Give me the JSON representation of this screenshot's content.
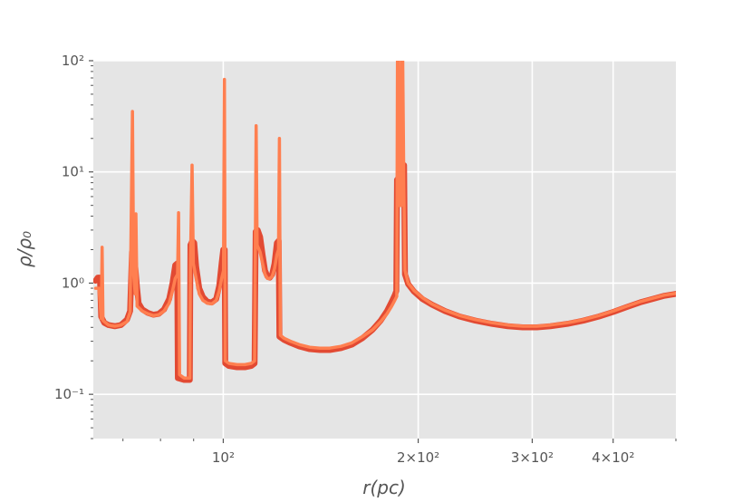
{
  "chart_data": {
    "type": "line",
    "title": "",
    "xlabel": "r(pc)",
    "ylabel": "ρ/ρ₀",
    "xscale": "log",
    "yscale": "log",
    "xlim": [
      63,
      500
    ],
    "ylim": [
      0.04,
      100
    ],
    "grid": true,
    "background": "#e5e5e5",
    "x_ticks": [
      {
        "value": 100,
        "label": "10²"
      },
      {
        "value": 200,
        "label": "2×10²"
      },
      {
        "value": 300,
        "label": "3×10²"
      },
      {
        "value": 400,
        "label": "4×10²"
      }
    ],
    "y_ticks": [
      {
        "value": 0.1,
        "label": "10⁻¹"
      },
      {
        "value": 1,
        "label": "10⁰"
      },
      {
        "value": 10,
        "label": "10¹"
      },
      {
        "value": 100,
        "label": "10²"
      }
    ],
    "series": [
      {
        "color": "#e24a33",
        "points": [
          [
            63.5,
            1.05
          ],
          [
            64.0,
            1.12
          ],
          [
            64.5,
            1.12
          ],
          [
            64.8,
            0.5
          ],
          [
            65.5,
            0.44
          ],
          [
            66.5,
            0.42
          ],
          [
            68.0,
            0.41
          ],
          [
            69.5,
            0.42
          ],
          [
            71.0,
            0.47
          ],
          [
            71.8,
            0.56
          ],
          [
            72.3,
            1.9
          ],
          [
            73.0,
            1.6
          ],
          [
            73.6,
            0.9
          ],
          [
            74.0,
            0.66
          ],
          [
            75.0,
            0.58
          ],
          [
            76.5,
            0.54
          ],
          [
            78.0,
            0.52
          ],
          [
            79.5,
            0.53
          ],
          [
            81.0,
            0.58
          ],
          [
            82.5,
            0.72
          ],
          [
            83.5,
            1.0
          ],
          [
            84.3,
            1.45
          ],
          [
            84.9,
            1.5
          ],
          [
            85.1,
            0.14
          ],
          [
            87.0,
            0.135
          ],
          [
            88.8,
            0.135
          ],
          [
            89.0,
            2.2
          ],
          [
            89.6,
            2.4
          ],
          [
            90.2,
            2.3
          ],
          [
            90.8,
            1.4
          ],
          [
            91.8,
            0.9
          ],
          [
            93.0,
            0.75
          ],
          [
            94.5,
            0.68
          ],
          [
            96.0,
            0.67
          ],
          [
            97.5,
            0.72
          ],
          [
            98.6,
            0.95
          ],
          [
            99.4,
            1.5
          ],
          [
            100.0,
            2.0
          ],
          [
            100.5,
            2.0
          ],
          [
            100.7,
            0.19
          ],
          [
            102.0,
            0.18
          ],
          [
            105.0,
            0.175
          ],
          [
            108.0,
            0.175
          ],
          [
            110.5,
            0.18
          ],
          [
            111.8,
            0.19
          ],
          [
            112.2,
            2.9
          ],
          [
            113.0,
            3.0
          ],
          [
            114.0,
            2.6
          ],
          [
            115.0,
            1.8
          ],
          [
            116.0,
            1.3
          ],
          [
            117.0,
            1.15
          ],
          [
            118.0,
            1.12
          ],
          [
            119.0,
            1.2
          ],
          [
            120.0,
            1.5
          ],
          [
            121.0,
            2.3
          ],
          [
            121.8,
            2.4
          ],
          [
            122.1,
            0.33
          ],
          [
            124.0,
            0.31
          ],
          [
            127.0,
            0.29
          ],
          [
            131.0,
            0.27
          ],
          [
            136.0,
            0.255
          ],
          [
            141.0,
            0.25
          ],
          [
            146.0,
            0.25
          ],
          [
            152.0,
            0.26
          ],
          [
            158.0,
            0.28
          ],
          [
            164.0,
            0.32
          ],
          [
            170.0,
            0.38
          ],
          [
            175.0,
            0.46
          ],
          [
            179.0,
            0.56
          ],
          [
            182.0,
            0.68
          ],
          [
            184.0,
            0.78
          ],
          [
            185.0,
            0.85
          ],
          [
            185.5,
            8.5
          ],
          [
            186.3,
            8.8
          ],
          [
            187.0,
            8.7
          ],
          [
            188.3,
            6.0
          ],
          [
            189.2,
            11.5
          ],
          [
            190.2,
            11.5
          ],
          [
            190.8,
            1.2
          ],
          [
            193.0,
            0.98
          ],
          [
            197.0,
            0.84
          ],
          [
            203.0,
            0.72
          ],
          [
            210.0,
            0.64
          ],
          [
            220.0,
            0.56
          ],
          [
            232.0,
            0.5
          ],
          [
            245.0,
            0.46
          ],
          [
            260.0,
            0.43
          ],
          [
            275.0,
            0.41
          ],
          [
            290.0,
            0.4
          ],
          [
            305.0,
            0.4
          ],
          [
            320.0,
            0.41
          ],
          [
            340.0,
            0.43
          ],
          [
            360.0,
            0.46
          ],
          [
            380.0,
            0.5
          ],
          [
            400.0,
            0.55
          ],
          [
            420.0,
            0.61
          ],
          [
            440.0,
            0.67
          ],
          [
            460.0,
            0.72
          ],
          [
            480.0,
            0.77
          ],
          [
            500.0,
            0.8
          ]
        ]
      },
      {
        "color": "#ff7f50",
        "points": [
          [
            63.5,
            0.9
          ],
          [
            64.3,
            0.9
          ],
          [
            64.8,
            0.48
          ],
          [
            65.0,
            2.1
          ],
          [
            65.2,
            0.46
          ],
          [
            66.5,
            0.42
          ],
          [
            68.0,
            0.41
          ],
          [
            69.5,
            0.42
          ],
          [
            71.0,
            0.45
          ],
          [
            71.8,
            0.55
          ],
          [
            72.4,
            35.0
          ],
          [
            72.7,
            1.2
          ],
          [
            73.1,
            0.8
          ],
          [
            73.3,
            4.2
          ],
          [
            73.6,
            0.62
          ],
          [
            75.0,
            0.56
          ],
          [
            76.5,
            0.53
          ],
          [
            78.0,
            0.51
          ],
          [
            79.5,
            0.52
          ],
          [
            81.0,
            0.56
          ],
          [
            82.5,
            0.66
          ],
          [
            83.5,
            0.85
          ],
          [
            84.3,
            1.1
          ],
          [
            85.0,
            1.2
          ],
          [
            85.3,
            4.3
          ],
          [
            85.6,
            0.15
          ],
          [
            87.0,
            0.14
          ],
          [
            88.8,
            0.14
          ],
          [
            89.0,
            1.5
          ],
          [
            89.5,
            11.5
          ],
          [
            89.9,
            1.5
          ],
          [
            90.8,
            1.1
          ],
          [
            91.8,
            0.8
          ],
          [
            93.0,
            0.7
          ],
          [
            94.5,
            0.66
          ],
          [
            96.0,
            0.65
          ],
          [
            97.5,
            0.7
          ],
          [
            98.6,
            0.85
          ],
          [
            99.4,
            1.1
          ],
          [
            100.1,
            1.3
          ],
          [
            100.4,
            68.0
          ],
          [
            100.7,
            0.2
          ],
          [
            102.0,
            0.19
          ],
          [
            105.0,
            0.185
          ],
          [
            108.0,
            0.185
          ],
          [
            110.5,
            0.19
          ],
          [
            111.8,
            0.2
          ],
          [
            112.4,
            26.0
          ],
          [
            112.8,
            2.2
          ],
          [
            114.0,
            1.9
          ],
          [
            115.0,
            1.5
          ],
          [
            116.0,
            1.2
          ],
          [
            117.0,
            1.1
          ],
          [
            118.0,
            1.1
          ],
          [
            119.0,
            1.15
          ],
          [
            120.0,
            1.35
          ],
          [
            121.0,
            1.8
          ],
          [
            121.7,
            2.0
          ],
          [
            122.1,
            20.0
          ],
          [
            122.5,
            0.34
          ],
          [
            124.0,
            0.32
          ],
          [
            127.0,
            0.3
          ],
          [
            131.0,
            0.28
          ],
          [
            136.0,
            0.265
          ],
          [
            141.0,
            0.26
          ],
          [
            146.0,
            0.26
          ],
          [
            152.0,
            0.27
          ],
          [
            158.0,
            0.29
          ],
          [
            164.0,
            0.33
          ],
          [
            170.0,
            0.38
          ],
          [
            175.0,
            0.45
          ],
          [
            179.0,
            0.53
          ],
          [
            182.0,
            0.62
          ],
          [
            184.0,
            0.7
          ],
          [
            185.3,
            0.76
          ],
          [
            185.8,
            100
          ],
          [
            186.6,
            100
          ],
          [
            187.0,
            5.0
          ],
          [
            188.3,
            5.0
          ],
          [
            188.8,
            100
          ],
          [
            189.3,
            100
          ],
          [
            190.0,
            8.0
          ],
          [
            190.8,
            1.3
          ],
          [
            193.0,
            1.0
          ],
          [
            197.0,
            0.86
          ],
          [
            203.0,
            0.74
          ],
          [
            210.0,
            0.65
          ],
          [
            220.0,
            0.57
          ],
          [
            232.0,
            0.51
          ],
          [
            245.0,
            0.47
          ],
          [
            260.0,
            0.44
          ],
          [
            275.0,
            0.42
          ],
          [
            290.0,
            0.41
          ],
          [
            305.0,
            0.41
          ],
          [
            320.0,
            0.42
          ],
          [
            340.0,
            0.44
          ],
          [
            360.0,
            0.47
          ],
          [
            380.0,
            0.51
          ],
          [
            400.0,
            0.56
          ],
          [
            420.0,
            0.62
          ],
          [
            440.0,
            0.68
          ],
          [
            460.0,
            0.73
          ],
          [
            480.0,
            0.78
          ],
          [
            500.0,
            0.81
          ]
        ]
      }
    ]
  }
}
